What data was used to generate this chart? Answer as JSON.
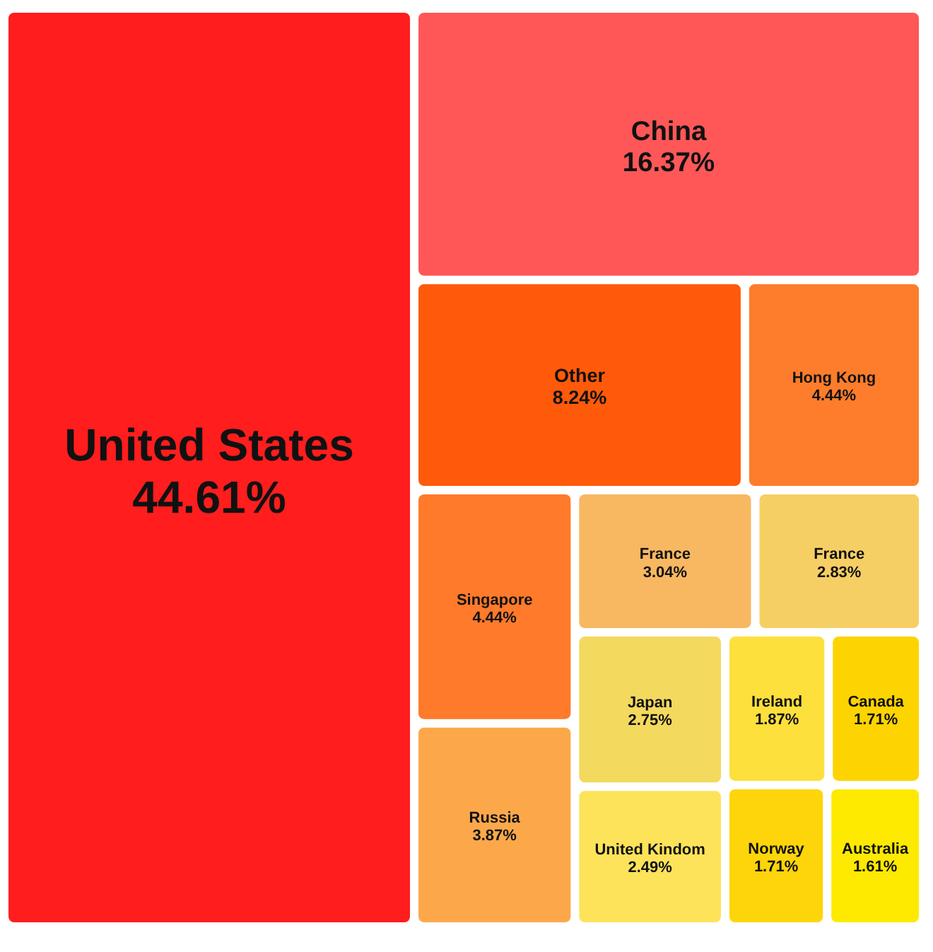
{
  "chart_data": {
    "type": "other",
    "categories": [
      "United States",
      "China",
      "Other",
      "Hong Kong",
      "Singapore",
      "Russia",
      "France",
      "France",
      "Japan",
      "United Kindom",
      "Ireland",
      "Canada",
      "Norway",
      "Australia"
    ],
    "values": [
      44.61,
      16.37,
      8.24,
      4.44,
      4.44,
      3.87,
      3.04,
      2.83,
      2.75,
      2.49,
      1.87,
      1.71,
      1.71,
      1.61
    ],
    "value_labels": [
      "44.61%",
      "16.37%",
      "8.24%",
      "4.44%",
      "4.44%",
      "3.87%",
      "3.04%",
      "2.83%",
      "2.75%",
      "2.49%",
      "1.87%",
      "1.71%",
      "1.71%",
      "1.61%"
    ],
    "colors": [
      "#ff1d1d",
      "#ff5757",
      "#ff5a0a",
      "#fd7d2c",
      "#ff7a2a",
      "#fca84a",
      "#f8b862",
      "#f6cf64",
      "#f3d95e",
      "#fde35a",
      "#fde03c",
      "#fdd400",
      "#fdd50a",
      "#fdea00"
    ]
  }
}
